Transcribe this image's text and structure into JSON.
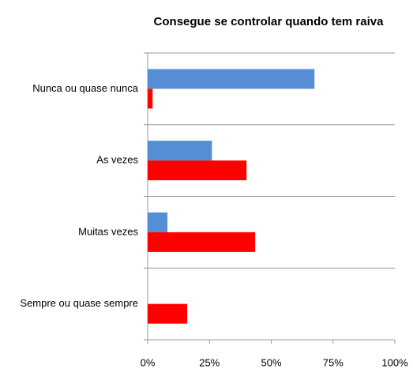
{
  "chart_data": {
    "type": "hbar",
    "title": "Consegue se controlar quando tem raiva",
    "categories": [
      "Nunca ou quase nunca",
      "As vezes",
      "Muitas vezes",
      "Sempre ou quase sempre"
    ],
    "series": [
      {
        "color": "#558ed5",
        "values": [
          67.5,
          26,
          8,
          0
        ]
      },
      {
        "color": "#ff0000",
        "values": [
          2,
          40,
          43.5,
          16
        ]
      }
    ],
    "xlim": [
      0,
      100
    ],
    "xticks": [
      {
        "value": 0,
        "label": "0%"
      },
      {
        "value": 25,
        "label": "25%"
      },
      {
        "value": 50,
        "label": "50%"
      },
      {
        "value": 75,
        "label": "75%"
      },
      {
        "value": 100,
        "label": "100%"
      }
    ]
  }
}
